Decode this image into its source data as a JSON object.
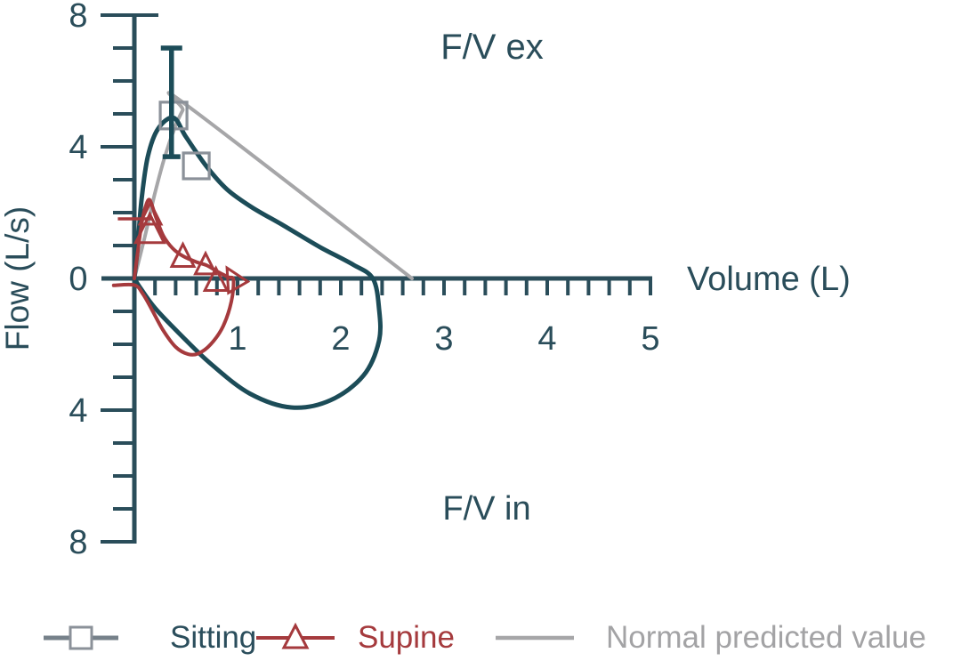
{
  "chart_data": {
    "type": "line",
    "title": "",
    "xlabel": "Volume (L)",
    "ylabel": "Flow (L/s)",
    "annotation_expiratory": "F/V ex",
    "annotation_inspiratory": "F/V in",
    "grid": false,
    "legend_position": "bottom",
    "x_axis": {
      "range": [
        0,
        5
      ],
      "minor_tick_step": 0.2,
      "tick_values": [
        1,
        2,
        3,
        4,
        5
      ],
      "tick_labels": [
        "1",
        "2",
        "3",
        "4",
        "5"
      ]
    },
    "y_axis": {
      "range": [
        -8,
        8
      ],
      "minor_tick_step": 1,
      "major_tick_values": [
        8,
        4,
        0,
        -4,
        -8
      ],
      "tick_values": [
        8,
        4,
        0,
        -4,
        -8
      ],
      "tick_labels": [
        "8",
        "4",
        "0",
        "4",
        "8"
      ]
    },
    "axis_color": "#2a4d5a",
    "series": [
      {
        "name": "Sitting",
        "color": "#1c4c58",
        "marker": "square",
        "marker_color": "#8b9199",
        "points": [
          [
            0,
            0
          ],
          [
            0.03,
            0.9
          ],
          [
            0.07,
            2.4
          ],
          [
            0.13,
            3.7
          ],
          [
            0.23,
            4.55
          ],
          [
            0.38,
            4.88
          ],
          [
            0.5,
            4.3
          ],
          [
            0.7,
            3.4
          ],
          [
            0.9,
            2.7
          ],
          [
            1.14,
            2.16
          ],
          [
            1.45,
            1.6
          ],
          [
            1.8,
            0.95
          ],
          [
            2.12,
            0.42
          ],
          [
            2.31,
            0
          ],
          [
            2.37,
            -0.9
          ],
          [
            2.37,
            -1.9
          ],
          [
            2.22,
            -2.95
          ],
          [
            1.9,
            -3.7
          ],
          [
            1.52,
            -3.92
          ],
          [
            1.12,
            -3.5
          ],
          [
            0.75,
            -2.62
          ],
          [
            0.45,
            -1.72
          ],
          [
            0.2,
            -0.9
          ],
          [
            0.05,
            -0.25
          ],
          [
            0,
            0
          ]
        ],
        "marker_points": [
          [
            0.38,
            4.95,
            30
          ],
          [
            0.6,
            3.42,
            29
          ]
        ],
        "error_bar": {
          "x": 0.36,
          "from": 3.7,
          "to": 7.0
        }
      },
      {
        "name": "Supine",
        "color": "#a53a3d",
        "marker": "triangle",
        "marker_color": "#a53a3d",
        "points": [
          [
            0,
            0
          ],
          [
            0.03,
            0.75
          ],
          [
            0.07,
            1.65
          ],
          [
            0.11,
            2.2
          ],
          [
            0.15,
            2.38
          ],
          [
            0.21,
            1.85
          ],
          [
            0.28,
            1.3
          ],
          [
            0.37,
            0.92
          ],
          [
            0.47,
            0.68
          ],
          [
            0.6,
            0.5
          ],
          [
            0.7,
            0.4
          ],
          [
            0.81,
            0.2
          ],
          [
            0.91,
            0.04
          ],
          [
            0.96,
            -0.04
          ],
          [
            0.94,
            -0.7
          ],
          [
            0.86,
            -1.45
          ],
          [
            0.74,
            -2.0
          ],
          [
            0.62,
            -2.28
          ],
          [
            0.52,
            -2.3
          ],
          [
            0.4,
            -2.08
          ],
          [
            0.28,
            -1.58
          ],
          [
            0.17,
            -0.95
          ],
          [
            0.08,
            -0.46
          ],
          [
            0.0,
            -0.2
          ],
          [
            -0.2,
            -0.21
          ]
        ],
        "marker_points": [
          [
            0.155,
            1.92,
            24
          ],
          [
            0.15,
            1.45,
            32
          ],
          [
            0.47,
            0.65,
            25
          ],
          [
            0.69,
            0.4,
            23
          ],
          [
            0.79,
            -0.08,
            25
          ],
          [
            0.96,
            -0.02,
            25,
            -30
          ]
        ],
        "extra_segment": [
          [
            -0.16,
            1.81
          ],
          [
            0.18,
            1.81
          ]
        ]
      },
      {
        "name": "Normal predicted value",
        "color": "#a6a6a8",
        "marker": "none",
        "points": [
          [
            0,
            0
          ],
          [
            0.1,
            1.25
          ],
          [
            0.2,
            2.6
          ],
          [
            0.3,
            3.75
          ],
          [
            0.4,
            4.65
          ],
          [
            0.47,
            5.12
          ],
          [
            0.5,
            5.28
          ],
          [
            2.69,
            0
          ]
        ]
      }
    ]
  },
  "legend": {
    "items": [
      {
        "label": "Sitting",
        "text_color": "#2b4e5c",
        "line_color": "#76818a",
        "marker": "square",
        "marker_color": "#8b9199"
      },
      {
        "label": "Supine",
        "text_color": "#a53a3d",
        "line_color": "#a53a3d",
        "marker": "triangle",
        "marker_color": "#a53a3d"
      },
      {
        "label": "Normal predicted value",
        "text_color": "#a3a3a5",
        "line_color": "#a6a6a8",
        "marker": "line"
      }
    ]
  }
}
